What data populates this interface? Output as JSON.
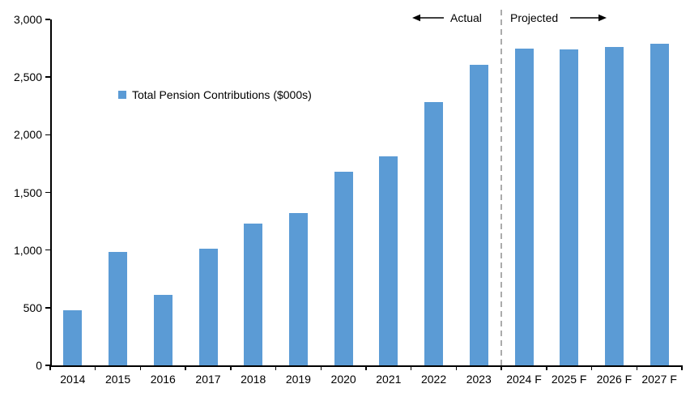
{
  "chart_data": {
    "type": "bar",
    "title": "",
    "legend": {
      "label": "Total Pension Contributions ($000s)",
      "position": "inside-top-left"
    },
    "categories": [
      "2014",
      "2015",
      "2016",
      "2017",
      "2018",
      "2019",
      "2020",
      "2021",
      "2022",
      "2023",
      "2024 F",
      "2025 F",
      "2026 F",
      "2027 F"
    ],
    "series": [
      {
        "name": "Total Pension Contributions ($000s)",
        "values": [
          475,
          985,
          610,
          1015,
          1230,
          1320,
          1680,
          1810,
          2280,
          2610,
          2750,
          2740,
          2760,
          2790
        ]
      }
    ],
    "ylim": [
      0,
      3000
    ],
    "ytick_interval": 500,
    "ytick_labels": [
      "0",
      "500",
      "1,000",
      "1,500",
      "2,000",
      "2,500",
      "3,000"
    ],
    "xlabel": "",
    "ylabel": "",
    "grid": false,
    "annotations": {
      "actual_label": "Actual",
      "projected_label": "Projected",
      "divider_between": [
        "2023",
        "2024 F"
      ]
    },
    "colors": {
      "bar": "#5B9BD5",
      "axis": "#000000",
      "divider": "#ABABAB",
      "text": "#000000"
    }
  }
}
